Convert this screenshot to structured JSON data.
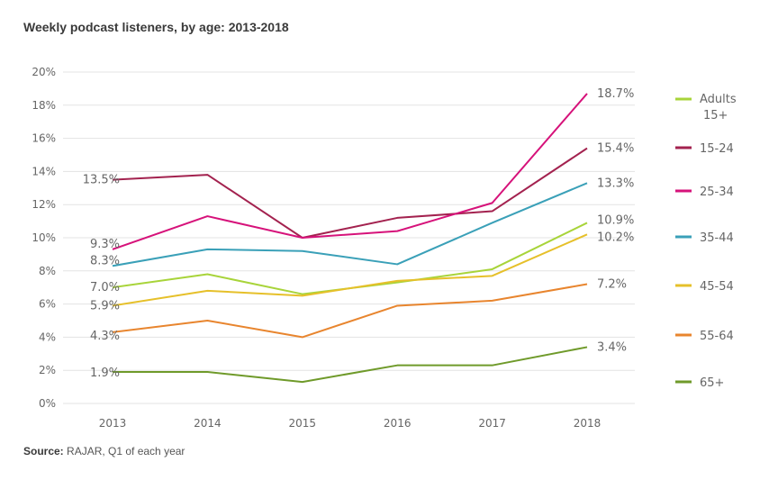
{
  "chart_data": {
    "type": "line",
    "title": "Weekly podcast listeners, by age: 2013-2018",
    "xlabel": "",
    "ylabel": "",
    "categories": [
      "2013",
      "2014",
      "2015",
      "2016",
      "2017",
      "2018"
    ],
    "ylim": [
      0,
      20
    ],
    "yticks": [
      "0%",
      "2%",
      "4%",
      "6%",
      "8%",
      "10%",
      "12%",
      "14%",
      "16%",
      "18%",
      "20%"
    ],
    "grid": true,
    "legend_position": "right",
    "series": [
      {
        "name": "Adults 15+",
        "color": "#a8d43a",
        "values": [
          7.0,
          7.8,
          6.6,
          7.3,
          8.1,
          10.9
        ],
        "labels": [
          "7.0%",
          "10.9%"
        ]
      },
      {
        "name": "15-24",
        "color": "#a3224f",
        "values": [
          13.5,
          13.8,
          10.0,
          11.2,
          11.6,
          15.4
        ],
        "labels": [
          "13.5%",
          "15.4%"
        ]
      },
      {
        "name": "25-34",
        "color": "#d6127a",
        "values": [
          9.3,
          11.3,
          10.0,
          10.4,
          12.1,
          18.7
        ],
        "labels": [
          "9.3%",
          "18.7%"
        ]
      },
      {
        "name": "35-44",
        "color": "#3aa0b8",
        "values": [
          8.3,
          9.3,
          9.2,
          8.4,
          10.9,
          13.3
        ],
        "labels": [
          "8.3%",
          "13.3%"
        ]
      },
      {
        "name": "45-54",
        "color": "#e6c02a",
        "values": [
          5.9,
          6.8,
          6.5,
          7.4,
          7.7,
          10.2
        ],
        "labels": [
          "5.9%",
          "10.2%"
        ]
      },
      {
        "name": "55-64",
        "color": "#e8852e",
        "values": [
          4.3,
          5.0,
          4.0,
          5.9,
          6.2,
          7.2
        ],
        "labels": [
          "4.3%",
          "7.2%"
        ]
      },
      {
        "name": "65+",
        "color": "#6f9a2a",
        "values": [
          1.9,
          1.9,
          1.3,
          2.3,
          2.3,
          3.4
        ],
        "labels": [
          "1.9%",
          "3.4%"
        ]
      }
    ]
  },
  "source": {
    "label": "Source:",
    "text": " RAJAR, Q1 of each year"
  }
}
